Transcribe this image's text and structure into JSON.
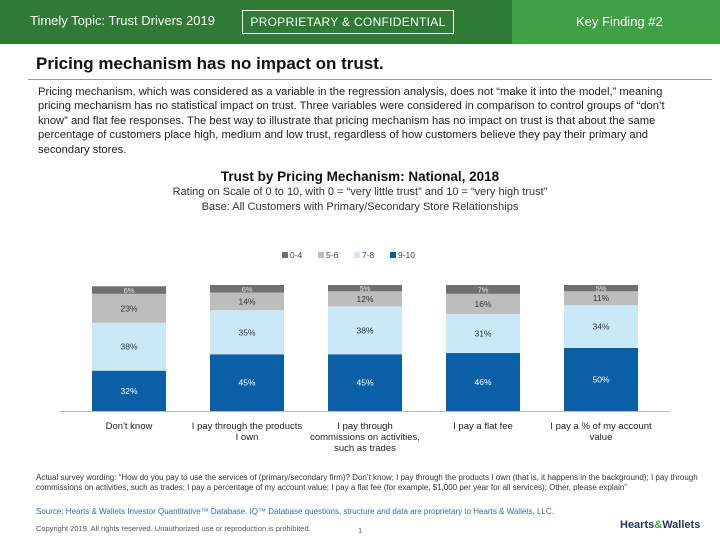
{
  "header": {
    "left_title": "Timely Topic: Trust Drivers 2019",
    "confidential": "PROPRIETARY & CONFIDENTIAL",
    "right_label": "Key Finding #2"
  },
  "headline": "Pricing mechanism has no impact on trust.",
  "body_text": "Pricing mechanism, which was considered as a variable in the regression analysis, does not “make it into the model,” meaning pricing mechanism has no statistical impact on trust. Three variables were considered in comparison to control groups of “don’t know” and flat fee responses. The best way to illustrate that pricing mechanism has no impact on trust is that about the same percentage of customers place high, medium and low trust, regardless of how customers believe they pay their primary and secondary stores.",
  "chart_data": {
    "type": "bar",
    "stacked": true,
    "title": "Trust by Pricing Mechanism: National, 2018",
    "subtitle_lines": [
      "Rating on Scale of 0 to 10, with 0 = “very little trust” and 10 = “very high trust”",
      "Base: All Customers with Primary/Secondary Store Relationships"
    ],
    "legend_position": "top",
    "categories": [
      [
        "Don't know"
      ],
      [
        "I pay through the products",
        "I own"
      ],
      [
        "I pay through",
        "commissions on activities,",
        "such as trades"
      ],
      [
        "I pay a flat fee"
      ],
      [
        "I pay a % of my account",
        "value"
      ]
    ],
    "series": [
      {
        "name": "9-10",
        "color": "#0a5fa6",
        "values": [
          32,
          45,
          45,
          46,
          50
        ],
        "labels": [
          "32%",
          "45%",
          "45%",
          "46%",
          "50%"
        ]
      },
      {
        "name": "7-8",
        "color": "#c9e8f8",
        "values": [
          38,
          35,
          38,
          31,
          34
        ],
        "labels": [
          "38%",
          "35%",
          "38%",
          "31%",
          "34%"
        ]
      },
      {
        "name": "5-6",
        "color": "#bdbdbd",
        "values": [
          23,
          14,
          12,
          16,
          11
        ],
        "labels": [
          "23%",
          "14%",
          "12%",
          "16%",
          "11%"
        ]
      },
      {
        "name": "0-4",
        "color": "#707070",
        "values": [
          6,
          6,
          5,
          7,
          5
        ],
        "labels": [
          "6%",
          "6%",
          "5%",
          "7%",
          "5%"
        ]
      }
    ],
    "legend_order": [
      "0-4",
      "5-6",
      "7-8",
      "9-10"
    ],
    "ylim": [
      0,
      100
    ]
  },
  "footnote": "Actual survey wording: “How do you pay to use the services of (primary/secondary firm)? Don’t know; I pay through the products I own (that is, it happens in the background); I pay through commissions on activities, such as trades; I pay a percentage of my account value; I pay a flat fee (for example, $1,000 per year for all services); Other, please explain”",
  "source": "Source: Hearts & Wallets Investor Quantitative™ Database. IQ™ Database questions, structure and data are proprietary to Hearts & Wallets, LLC.",
  "copyright": "Copyright 2019. All rights reserved. Unauthorized use or reproduction is prohibited.",
  "page_number": "1",
  "logo": {
    "part1": "Hearts",
    "amp": "&",
    "part2": "Wallets"
  }
}
